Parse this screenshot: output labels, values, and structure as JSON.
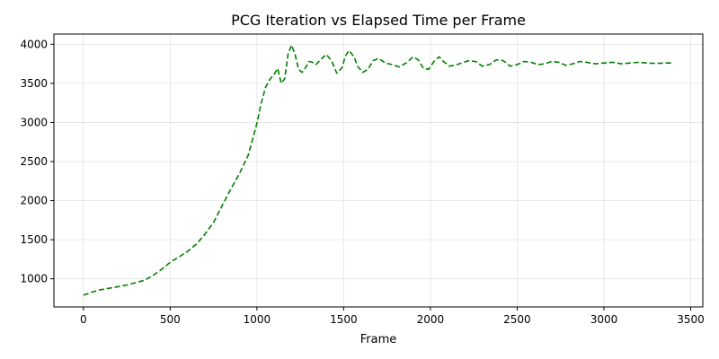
{
  "chart_data": {
    "type": "line",
    "title": "PCG Iteration vs Elapsed Time per Frame",
    "xlabel": "Frame",
    "ylabel": "",
    "xlim": [
      -170,
      3570
    ],
    "ylim": [
      640,
      4130
    ],
    "xticks": [
      0,
      500,
      1000,
      1500,
      2000,
      2500,
      3000,
      3500
    ],
    "yticks": [
      1000,
      1500,
      2000,
      2500,
      3000,
      3500,
      4000
    ],
    "grid": true,
    "legend": "none",
    "series": [
      {
        "color": "#008000",
        "line_style": "dashed",
        "x": [
          0,
          25,
          50,
          100,
          150,
          200,
          250,
          300,
          350,
          400,
          450,
          500,
          550,
          600,
          650,
          700,
          750,
          800,
          850,
          900,
          950,
          1000,
          1025,
          1050,
          1075,
          1100,
          1120,
          1140,
          1160,
          1180,
          1200,
          1220,
          1240,
          1260,
          1280,
          1300,
          1320,
          1340,
          1370,
          1400,
          1430,
          1460,
          1490,
          1510,
          1530,
          1560,
          1580,
          1610,
          1640,
          1670,
          1700,
          1740,
          1780,
          1820,
          1860,
          1900,
          1930,
          1960,
          1990,
          2020,
          2050,
          2080,
          2110,
          2140,
          2180,
          2220,
          2260,
          2300,
          2340,
          2380,
          2420,
          2460,
          2500,
          2540,
          2580,
          2620,
          2660,
          2700,
          2740,
          2780,
          2820,
          2860,
          2900,
          2950,
          3000,
          3050,
          3100,
          3150,
          3200,
          3250,
          3300,
          3350,
          3400
        ],
        "y": [
          790,
          810,
          830,
          860,
          880,
          900,
          920,
          950,
          980,
          1040,
          1120,
          1210,
          1280,
          1350,
          1440,
          1570,
          1720,
          1940,
          2150,
          2350,
          2580,
          2990,
          3250,
          3450,
          3550,
          3620,
          3690,
          3500,
          3560,
          3880,
          3990,
          3870,
          3680,
          3640,
          3700,
          3780,
          3770,
          3740,
          3810,
          3870,
          3790,
          3630,
          3700,
          3850,
          3920,
          3840,
          3720,
          3640,
          3680,
          3790,
          3820,
          3760,
          3740,
          3710,
          3760,
          3840,
          3800,
          3690,
          3680,
          3780,
          3840,
          3770,
          3720,
          3730,
          3760,
          3790,
          3780,
          3720,
          3740,
          3800,
          3790,
          3720,
          3740,
          3780,
          3770,
          3740,
          3750,
          3780,
          3770,
          3730,
          3750,
          3780,
          3770,
          3750,
          3760,
          3770,
          3750,
          3760,
          3770,
          3760,
          3755,
          3760,
          3760
        ]
      }
    ]
  }
}
